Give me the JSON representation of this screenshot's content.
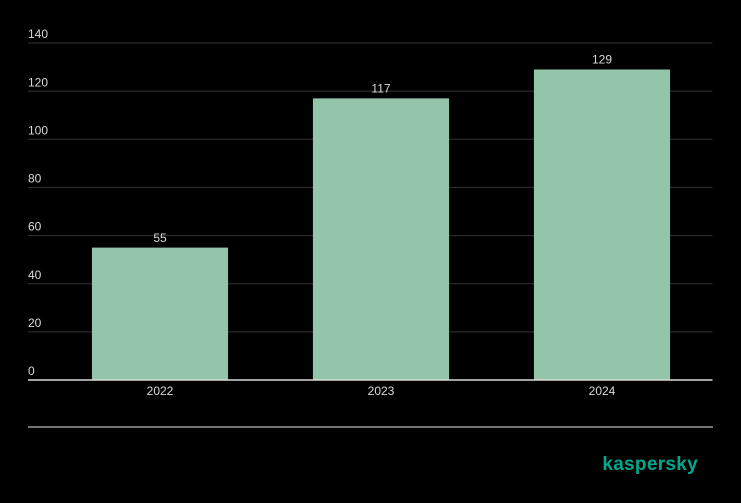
{
  "chart_data": {
    "type": "bar",
    "categories": [
      "2022",
      "2023",
      "2024"
    ],
    "values": [
      55,
      117,
      129
    ],
    "color": "#93c5aa",
    "ylim": [
      0,
      140
    ],
    "yticks": [
      0,
      20,
      40,
      60,
      80,
      100,
      120,
      140
    ],
    "grid": true
  },
  "brand": "kaspersky"
}
